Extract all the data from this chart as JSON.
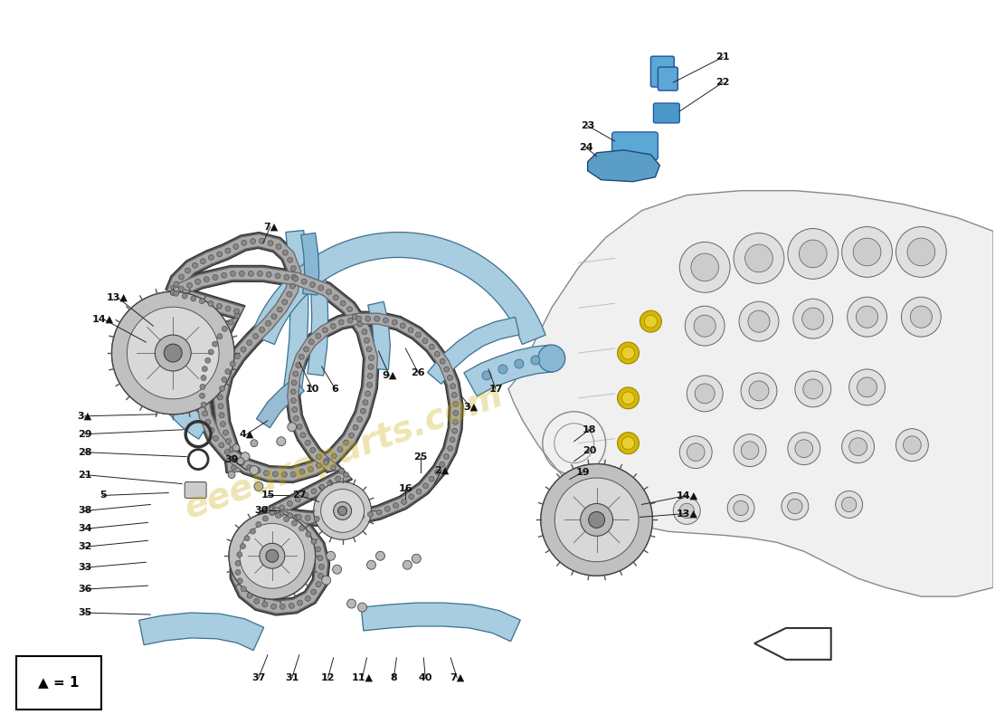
{
  "bg": "#ffffff",
  "fig_w": 11.0,
  "fig_h": 8.0,
  "dpi": 100,
  "watermark": "eeeuroparts.com",
  "wm_color": "#c8a800",
  "wm_alpha": 0.3,
  "guide_fc": "#a8cce0",
  "guide_ec": "#3a7090",
  "engine_fc": "#f2f2f2",
  "engine_ec": "#444444",
  "chain_dark": "#555555",
  "chain_mid": "#888888",
  "sprocket_fc": "#d0d0d0",
  "sprocket_ec": "#444444",
  "sensor_fc": "#5ba8d4",
  "sensor_ec": "#2050a0",
  "label_color": "#111111",
  "label_fs": 8.0,
  "line_color": "#222222",
  "arrow_fc": "#ffffff",
  "arrow_ec": "#333333"
}
